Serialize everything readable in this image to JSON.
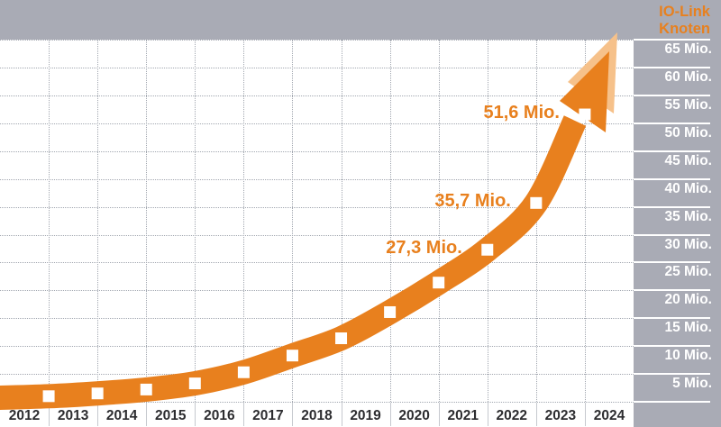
{
  "colors": {
    "accent_orange": "#e8801e",
    "light_orange": "#f6c18a",
    "panel_gray": "#a9abb5",
    "grid_dot_gray": "#a2a7b0",
    "tick_text_white": "#ffffff",
    "year_text_dark": "#2d2d30",
    "marker_white": "#ffffff"
  },
  "right_panel": {
    "title_lines": [
      "IO-Link",
      "Knoten"
    ],
    "tick_labels": [
      "65 Mio.",
      "60 Mio.",
      "55 Mio.",
      "50 Mio.",
      "45 Mio.",
      "40 Mio.",
      "35 Mio.",
      "30 Mio.",
      "25 Mio.",
      "20 Mio.",
      "15 Mio.",
      "10 Mio.",
      "5 Mio."
    ]
  },
  "chart_data": {
    "type": "line",
    "title": "IO-Link Knoten",
    "categories": [
      "2012",
      "2013",
      "2014",
      "2015",
      "2016",
      "2017",
      "2018",
      "2019",
      "2020",
      "2021",
      "2022",
      "2023",
      "2024"
    ],
    "series": [
      {
        "name": "IO-Link Knoten (Mio.)",
        "years": [
          "2012",
          "2013",
          "2014",
          "2015",
          "2016",
          "2017",
          "2018",
          "2019",
          "2020",
          "2021",
          "2022",
          "2023"
        ],
        "values": [
          1.0,
          1.5,
          2.2,
          3.3,
          5.3,
          8.3,
          11.4,
          16.1,
          21.4,
          27.3,
          35.7,
          51.6
        ]
      }
    ],
    "point_labels": [
      {
        "year": "2021",
        "text": "27,3 Mio."
      },
      {
        "year": "2022",
        "text": "35,7 Mio."
      },
      {
        "year": "2023",
        "text": "51,6 Mio."
      }
    ],
    "ylim": [
      0,
      65
    ],
    "ytick_step": 5,
    "ytick_suffix": "Mio.",
    "grid": "dotted",
    "legend": "none",
    "marker": "white-square",
    "trend": "orange-arrow-up"
  }
}
